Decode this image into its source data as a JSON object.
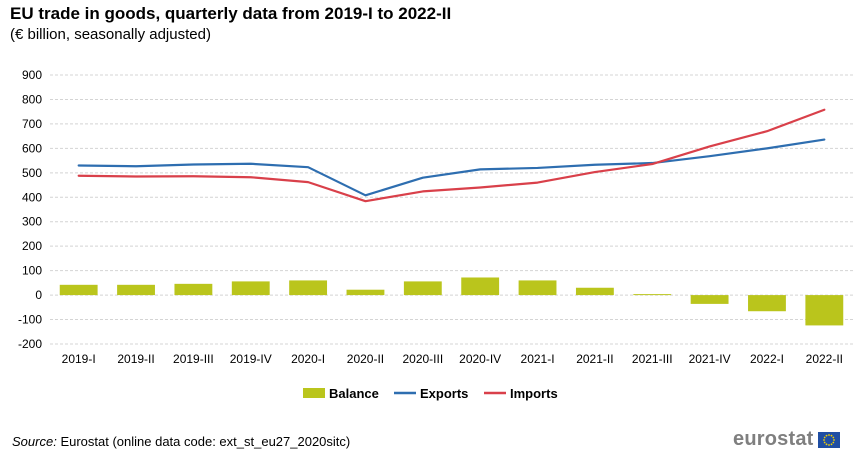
{
  "title": "EU trade in goods, quarterly data from 2019-I to 2022-II",
  "subtitle": "(€  billion, seasonally adjusted)",
  "source": {
    "label": "Source:",
    "text": "Eurostat (online data code: ext_st_eu27_2020sitc)"
  },
  "logo_text": "eurostat",
  "colors": {
    "balance": "#bac51c",
    "exports": "#2e6eb0",
    "imports": "#d9404a",
    "grid": "#d4d4d4",
    "eu_blue": "#1f4ea3",
    "eu_star": "#f2d000"
  },
  "chart_data": {
    "type": "bar+line",
    "title": "EU trade in goods, quarterly data from 2019-I to 2022-II",
    "subtitle": "(€  billion, seasonally adjusted)",
    "categories": [
      "2019-I",
      "2019-II",
      "2019-III",
      "2019-IV",
      "2020-I",
      "2020-II",
      "2020-III",
      "2020-IV",
      "2021-I",
      "2021-II",
      "2021-III",
      "2021-IV",
      "2022-I",
      "2022-II"
    ],
    "ylim": [
      -200,
      900
    ],
    "yticks": [
      900,
      800,
      700,
      600,
      500,
      400,
      300,
      200,
      100,
      0,
      -100,
      -200
    ],
    "grid": true,
    "legend_position": "bottom-center",
    "series": [
      {
        "name": "Balance",
        "type": "bar",
        "color": "#bac51c",
        "values": [
          42,
          42,
          46,
          56,
          60,
          22,
          56,
          72,
          60,
          30,
          4,
          -36,
          -66,
          -124
        ]
      },
      {
        "name": "Exports",
        "type": "line",
        "color": "#2e6eb0",
        "values": [
          530,
          527,
          534,
          537,
          523,
          408,
          480,
          514,
          520,
          533,
          540,
          568,
          600,
          636
        ]
      },
      {
        "name": "Imports",
        "type": "line",
        "color": "#d9404a",
        "values": [
          488,
          485,
          486,
          482,
          462,
          384,
          424,
          440,
          460,
          503,
          536,
          608,
          670,
          758
        ]
      }
    ]
  }
}
